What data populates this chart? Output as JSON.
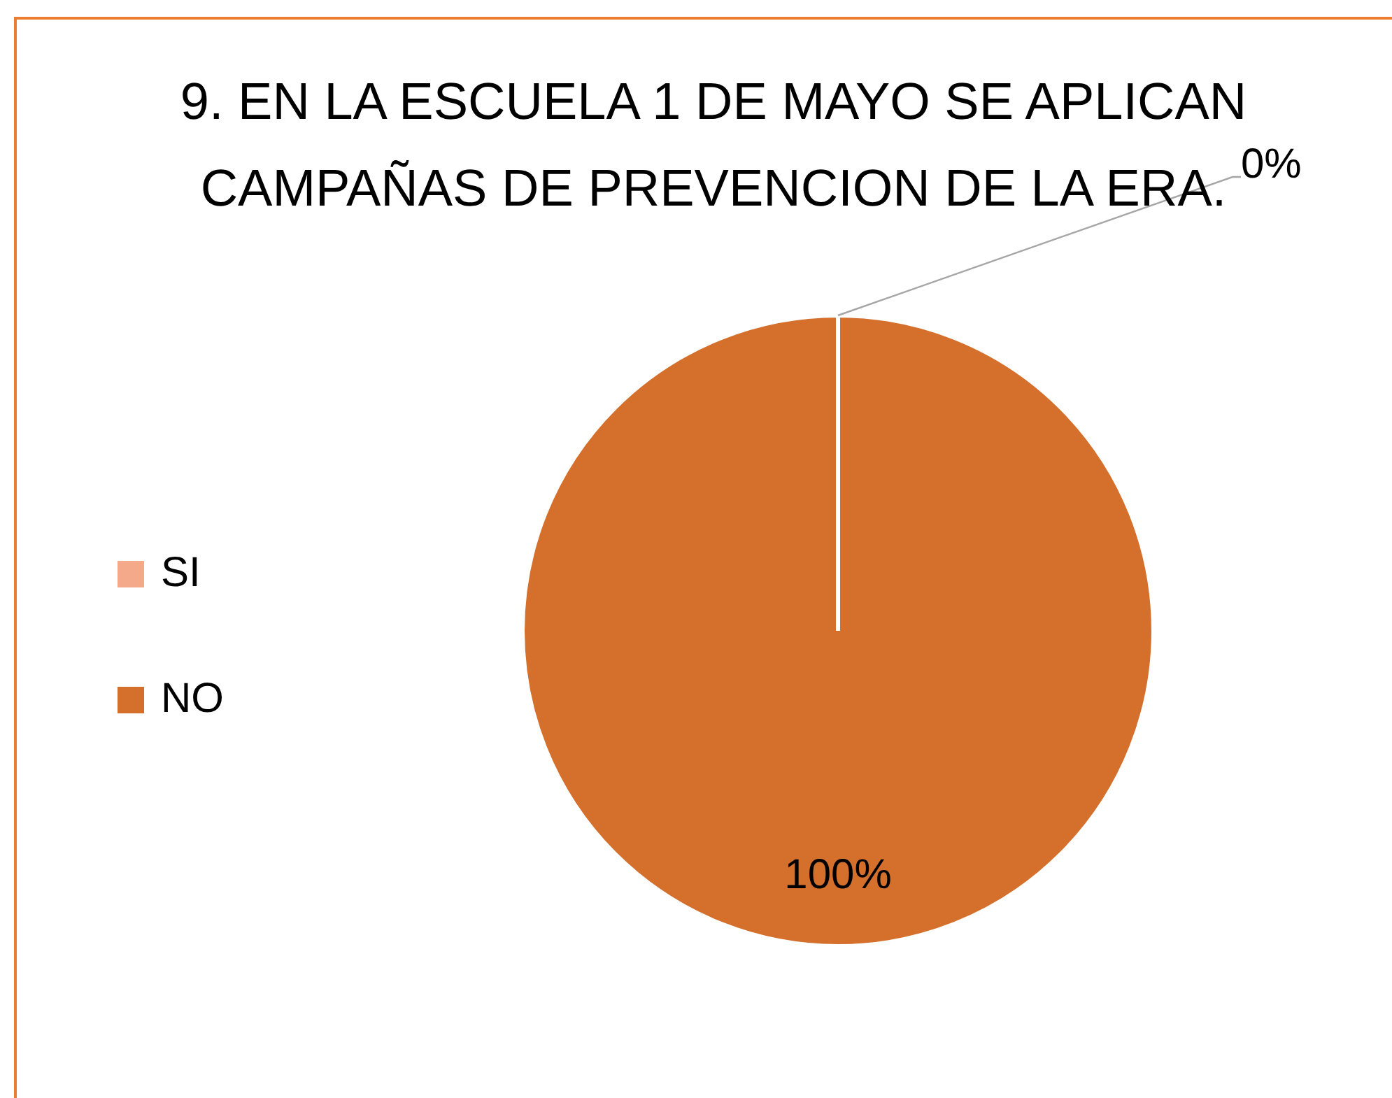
{
  "chart_data": {
    "type": "pie",
    "title": "9. EN LA ESCUELA 1 DE MAYO SE APLICAN CAMPAÑAS DE PREVENCION DE LA ERA.",
    "categories": [
      "SI",
      "NO"
    ],
    "values": [
      0,
      100
    ],
    "colors": [
      "#f3a98a",
      "#d46f2c"
    ],
    "value_labels": [
      "0%",
      "100%"
    ],
    "legend": "left"
  }
}
